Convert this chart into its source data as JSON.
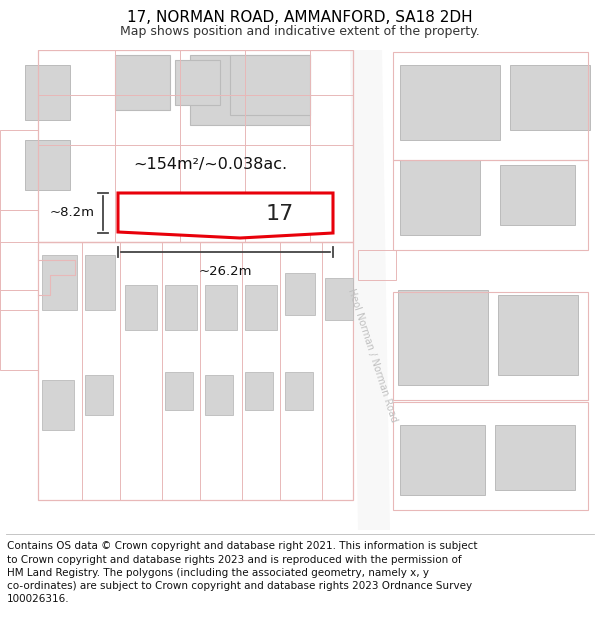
{
  "title": "17, NORMAN ROAD, AMMANFORD, SA18 2DH",
  "subtitle": "Map shows position and indicative extent of the property.",
  "footer": "Contains OS data © Crown copyright and database right 2021. This information is subject\nto Crown copyright and database rights 2023 and is reproduced with the permission of\nHM Land Registry. The polygons (including the associated geometry, namely x, y\nco-ordinates) are subject to Crown copyright and database rights 2023 Ordnance Survey\n100026316.",
  "background_color": "#ffffff",
  "building_fill": "#d4d4d4",
  "building_edge": "#bbbbbb",
  "pink_line": "#e8b8b8",
  "highlight_edge": "#e8000a",
  "dim_color": "#444444",
  "road_label": "Heol Norman / Norman Road",
  "area_label": "~154m²/~0.038ac.",
  "width_label": "~26.2m",
  "height_label": "~8.2m",
  "number_label": "17",
  "title_fontsize": 11,
  "subtitle_fontsize": 9,
  "footer_fontsize": 7.5,
  "road_label_color": "#c0c0c0",
  "road_label_rotation": -72
}
